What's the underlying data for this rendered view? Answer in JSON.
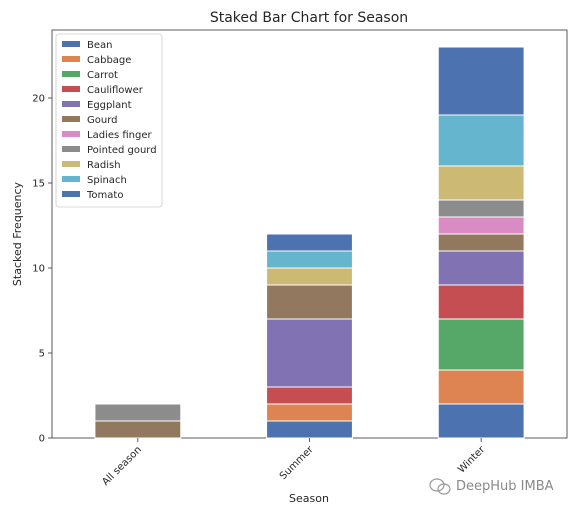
{
  "chart_data": {
    "type": "bar",
    "stacked": true,
    "title": "Staked Bar Chart for Season",
    "xlabel": "Season",
    "ylabel": "Stacked Frequency",
    "categories": [
      "All season",
      "Summer",
      "Winter"
    ],
    "ylim": [
      0,
      24
    ],
    "yticks": [
      0,
      5,
      10,
      15,
      20
    ],
    "grid": false,
    "legend_position": "top-left",
    "series": [
      {
        "name": "Bean",
        "color": "#4c72b0",
        "values": [
          0,
          1,
          2
        ]
      },
      {
        "name": "Cabbage",
        "color": "#dd8452",
        "values": [
          0,
          1,
          2
        ]
      },
      {
        "name": "Carrot",
        "color": "#55a868",
        "values": [
          0,
          0,
          3
        ]
      },
      {
        "name": "Cauliflower",
        "color": "#c44e52",
        "values": [
          0,
          1,
          2
        ]
      },
      {
        "name": "Eggplant",
        "color": "#8172b3",
        "values": [
          0,
          4,
          2
        ]
      },
      {
        "name": "Gourd",
        "color": "#937860",
        "values": [
          1,
          2,
          1
        ]
      },
      {
        "name": "Ladies finger",
        "color": "#da8bc3",
        "values": [
          0,
          0,
          1
        ]
      },
      {
        "name": "Pointed gourd",
        "color": "#8c8c8c",
        "values": [
          1,
          0,
          1
        ]
      },
      {
        "name": "Radish",
        "color": "#ccb974",
        "values": [
          0,
          1,
          2
        ]
      },
      {
        "name": "Spinach",
        "color": "#64b5cd",
        "values": [
          0,
          1,
          3
        ]
      },
      {
        "name": "Tomato",
        "color": "#4c72b0",
        "values": [
          0,
          1,
          4
        ]
      }
    ]
  },
  "watermark": {
    "text": "DeepHub IMBA",
    "icon": "wechat-icon"
  }
}
